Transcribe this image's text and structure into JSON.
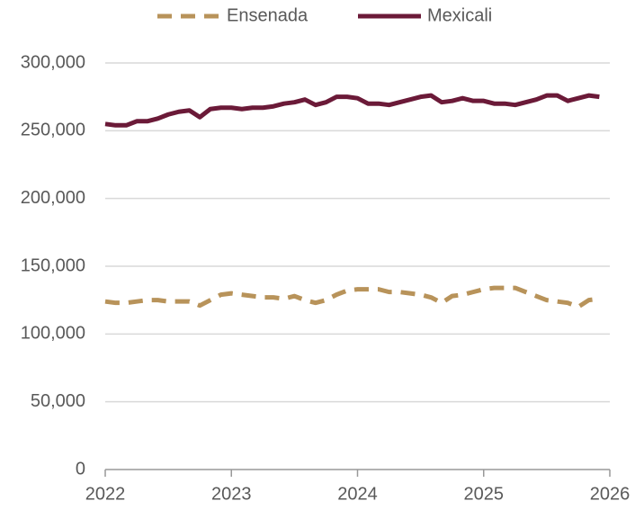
{
  "chart_data": {
    "type": "line",
    "x": [
      2022,
      2022.083,
      2022.167,
      2022.25,
      2022.333,
      2022.417,
      2022.5,
      2022.583,
      2022.667,
      2022.75,
      2022.833,
      2022.917,
      2023,
      2023.083,
      2023.167,
      2023.25,
      2023.333,
      2023.417,
      2023.5,
      2023.583,
      2023.667,
      2023.75,
      2023.833,
      2023.917,
      2024,
      2024.083,
      2024.167,
      2024.25,
      2024.333,
      2024.417,
      2024.5,
      2024.583,
      2024.667,
      2024.75,
      2024.833,
      2024.917,
      2025,
      2025.083,
      2025.167,
      2025.25,
      2025.333,
      2025.417,
      2025.5,
      2025.583,
      2025.667,
      2025.75,
      2025.833,
      2025.917
    ],
    "series": [
      {
        "name": "Ensenada",
        "color": "#b8935a",
        "dashed": true,
        "values": [
          124000,
          123000,
          123000,
          124000,
          125000,
          125000,
          124000,
          124000,
          124000,
          121000,
          125000,
          129000,
          130000,
          129000,
          128000,
          127000,
          127000,
          126000,
          128000,
          125000,
          123000,
          125000,
          129000,
          132000,
          133000,
          133000,
          133000,
          131000,
          131000,
          130000,
          129000,
          127000,
          123000,
          128000,
          129000,
          131000,
          133000,
          134000,
          134000,
          134000,
          131000,
          128000,
          125000,
          124000,
          123000,
          120000,
          125000,
          126000
        ]
      },
      {
        "name": "Mexicali",
        "color": "#6b1a38",
        "dashed": false,
        "values": [
          255000,
          254000,
          254000,
          257000,
          257000,
          259000,
          262000,
          264000,
          265000,
          260000,
          266000,
          267000,
          267000,
          266000,
          267000,
          267000,
          268000,
          270000,
          271000,
          273000,
          269000,
          271000,
          275000,
          275000,
          274000,
          270000,
          270000,
          269000,
          271000,
          273000,
          275000,
          276000,
          271000,
          272000,
          274000,
          272000,
          272000,
          270000,
          270000,
          269000,
          271000,
          273000,
          276000,
          276000,
          272000,
          274000,
          276000,
          275000
        ]
      }
    ],
    "xlim": [
      2022,
      2026
    ],
    "xticks": [
      2022,
      2023,
      2024,
      2025,
      2026
    ],
    "ylim": [
      0,
      300000
    ],
    "yticks": [
      0,
      {
        "value": 50000,
        "label": "50,000"
      },
      {
        "value": 100000,
        "label": "100,000"
      },
      {
        "value": 150000,
        "label": "150,000"
      },
      {
        "value": 200000,
        "label": "200,000"
      },
      {
        "value": 250000,
        "label": "250,000"
      },
      {
        "value": 300000,
        "label": "300,000"
      }
    ],
    "grid": true,
    "legend": "top"
  }
}
